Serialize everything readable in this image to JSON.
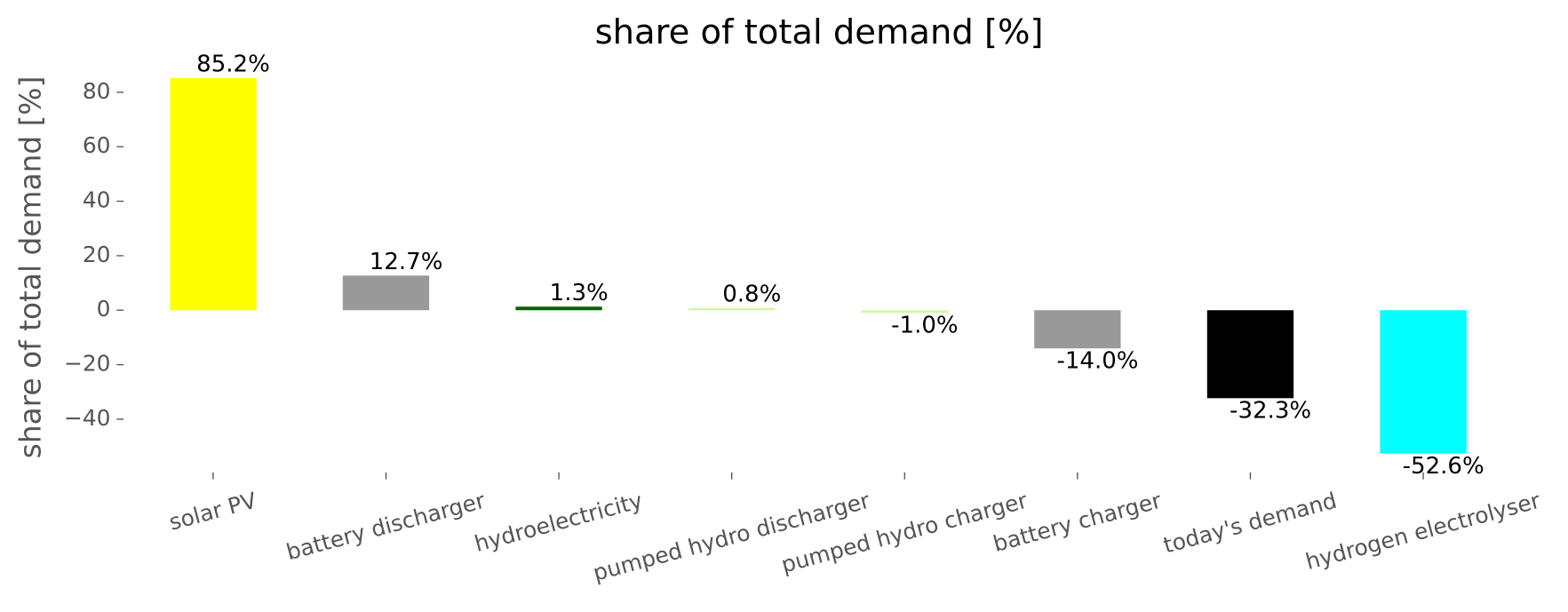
{
  "chart_data": {
    "type": "bar",
    "title": "share of total demand [%]",
    "ylabel": "share of total demand [%]",
    "categories": [
      "solar PV",
      "battery discharger",
      "hydroelectricity",
      "pumped hydro discharger",
      "pumped hydro charger",
      "battery charger",
      "today's demand",
      "hydrogen electrolyser"
    ],
    "values": [
      85.2,
      12.7,
      1.3,
      0.8,
      -1.0,
      -14.0,
      -32.3,
      -52.6
    ],
    "value_labels": [
      "85.2%",
      "12.7%",
      "1.3%",
      "0.8%",
      "-1.0%",
      "-14.0%",
      "-32.3%",
      "-52.6%"
    ],
    "colors": [
      "#ffff00",
      "#999999",
      "#006400",
      "#d4f7a5",
      "#d4f7a5",
      "#999999",
      "#000000",
      "#00ffff"
    ],
    "ylim": [
      -59.5,
      92.1
    ],
    "yticks": [
      {
        "value": -40,
        "label": "−40"
      },
      {
        "value": -20,
        "label": "−20"
      },
      0,
      20,
      40,
      60,
      80
    ],
    "grid": false
  }
}
